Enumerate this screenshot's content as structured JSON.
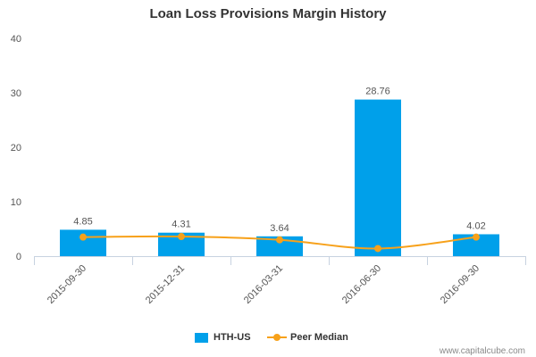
{
  "chart_data": {
    "type": "bar",
    "title": "Loan Loss Provisions Margin History",
    "categories": [
      "2015-09-30",
      "2015-12-31",
      "2016-03-31",
      "2016-06-30",
      "2016-09-30"
    ],
    "series": [
      {
        "name": "HTH-US",
        "type": "bar",
        "values": [
          4.85,
          4.31,
          3.64,
          28.76,
          4.02
        ],
        "labels": [
          "4.85",
          "4.31",
          "3.64",
          "28.76",
          "4.02"
        ],
        "color": "#00a0ea"
      },
      {
        "name": "Peer Median",
        "type": "line",
        "values": [
          3.5,
          3.6,
          3.0,
          1.4,
          3.5
        ],
        "color": "#f7a11a"
      }
    ],
    "ylim": [
      0,
      40
    ],
    "yticks": [
      0,
      10,
      20,
      30,
      40
    ],
    "grid": false,
    "legend_position": "bottom-center"
  },
  "watermark": "www.capitalcube.com"
}
